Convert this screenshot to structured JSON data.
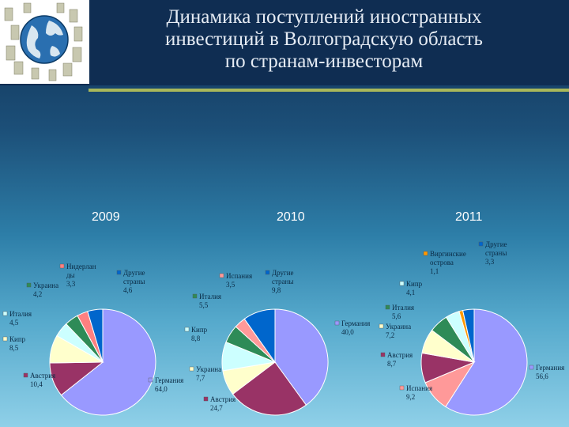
{
  "title": {
    "line1": "Динамика поступлений иностранных",
    "line2": "инвестиций в Волгоградскую область",
    "line3": "по странам-инвесторам"
  },
  "colors": {
    "germany": "#9999ff",
    "austria": "#993366",
    "cyprus": "#ffffcc",
    "italy": "#ccffff",
    "ukraine": "#2e8b57",
    "netherlands": "#ff8080",
    "other": "#0066cc",
    "spain": "#ff9999",
    "virgin": "#ff9900",
    "label_swatch": "#ffcc66"
  },
  "chart_data": [
    {
      "type": "pie",
      "title": "2009",
      "categories": [
        "Германия",
        "Австрия",
        "Кипр",
        "Италия",
        "Украина",
        "Нидерланды",
        "Другие страны"
      ],
      "values": [
        64.0,
        10.4,
        8.5,
        4.5,
        4.2,
        3.3,
        4.6
      ],
      "labels": [
        {
          "lines": [
            "Германия",
            "64,0"
          ]
        },
        {
          "lines": [
            "Австрия",
            "10,4"
          ]
        },
        {
          "lines": [
            "Кипр",
            "8,5"
          ]
        },
        {
          "lines": [
            "Италия",
            "4,5"
          ]
        },
        {
          "lines": [
            "Украина",
            "4,2"
          ]
        },
        {
          "lines": [
            "Нидерлан",
            "ды",
            "3,3"
          ]
        },
        {
          "lines": [
            "Другие",
            "страны",
            "4,6"
          ]
        }
      ]
    },
    {
      "type": "pie",
      "title": "2010",
      "categories": [
        "Германия",
        "Австрия",
        "Украина",
        "Кипр",
        "Италия",
        "Испания",
        "Другие страны"
      ],
      "values": [
        40.0,
        24.7,
        7.7,
        8.8,
        5.5,
        3.5,
        9.8
      ],
      "labels": [
        {
          "lines": [
            "Германия",
            "40,0"
          ]
        },
        {
          "lines": [
            "Австрия",
            "24,7"
          ]
        },
        {
          "lines": [
            "Украина",
            "7,7"
          ]
        },
        {
          "lines": [
            "Кипр",
            "8,8"
          ]
        },
        {
          "lines": [
            "Италия",
            "5,5"
          ]
        },
        {
          "lines": [
            "Испания",
            "3,5"
          ]
        },
        {
          "lines": [
            "Другие",
            "страны",
            "9,8"
          ]
        }
      ]
    },
    {
      "type": "pie",
      "title": "2011",
      "categories": [
        "Германия",
        "Испания",
        "Австрия",
        "Украина",
        "Италия",
        "Кипр",
        "Виргинские острова",
        "Другие страны"
      ],
      "values": [
        56.6,
        9.2,
        8.7,
        7.2,
        5.6,
        4.1,
        1.1,
        3.3
      ],
      "labels": [
        {
          "lines": [
            "Германия",
            "56,6"
          ]
        },
        {
          "lines": [
            "Испания",
            "9,2"
          ]
        },
        {
          "lines": [
            "Австрия",
            "8,7"
          ]
        },
        {
          "lines": [
            "Украина",
            "7,2"
          ]
        },
        {
          "lines": [
            "Италия",
            "5,6"
          ]
        },
        {
          "lines": [
            "Кипр",
            "4,1"
          ]
        },
        {
          "lines": [
            "Виргинские",
            "острова",
            "1,1"
          ]
        },
        {
          "lines": [
            "Другие",
            "страны",
            "3,3"
          ]
        }
      ]
    }
  ]
}
